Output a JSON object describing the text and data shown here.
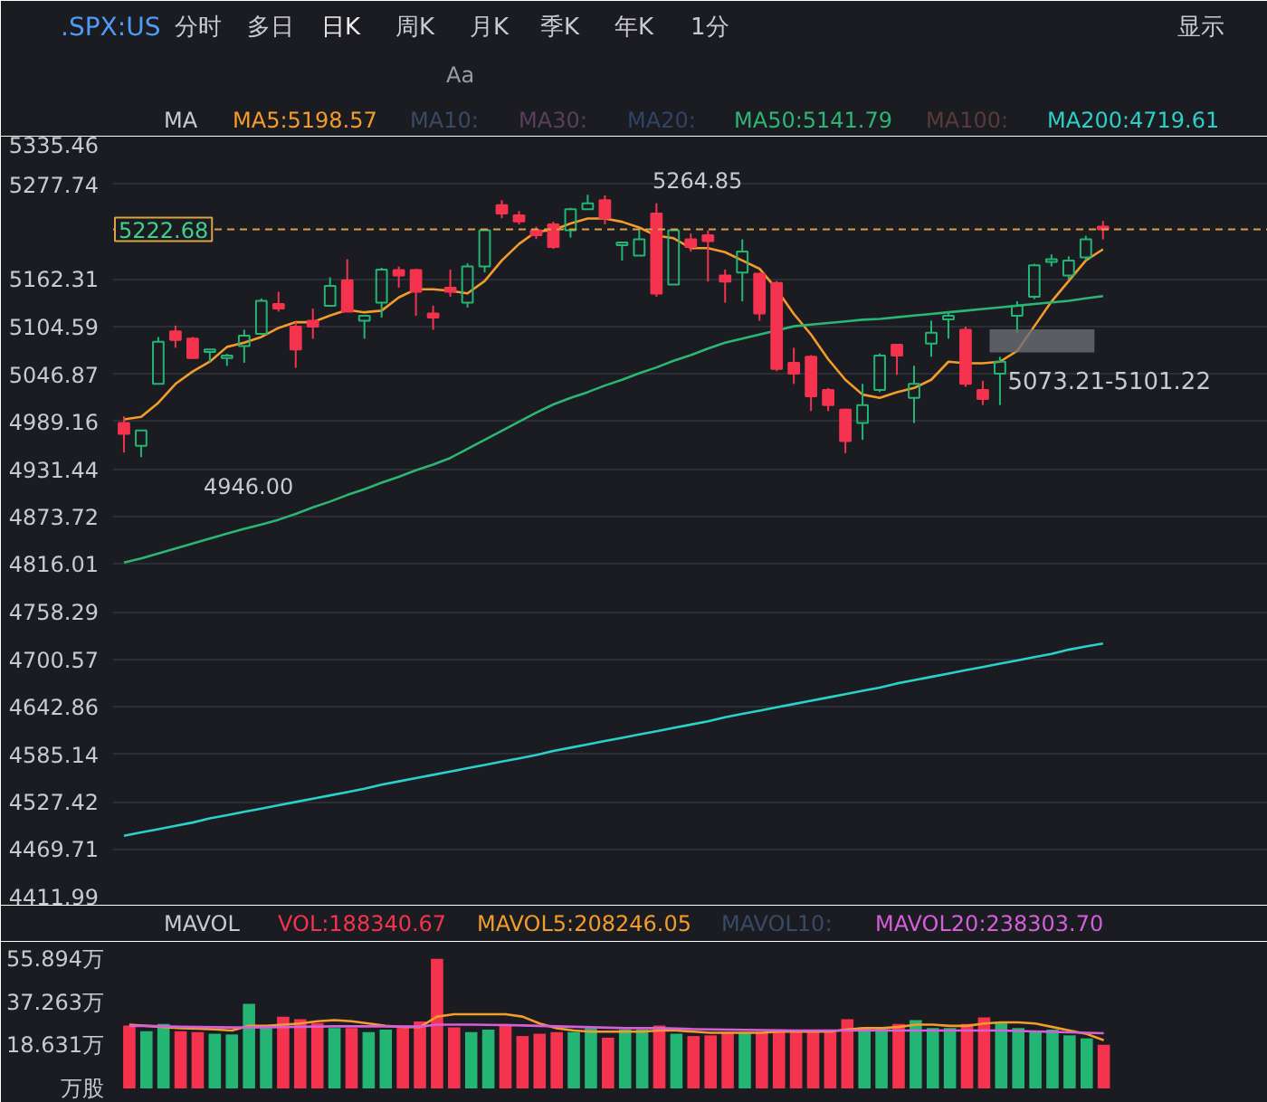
{
  "chart_data": [
    {
      "type": "candlestick",
      "title": ".SPX:US",
      "categories": [
        null,
        null,
        null,
        null,
        null,
        null,
        null,
        null,
        null,
        null,
        null,
        null,
        null,
        null,
        null,
        null,
        null,
        null,
        null,
        null,
        null,
        null,
        null,
        null,
        null,
        null,
        null,
        null,
        null,
        null,
        null,
        null,
        null,
        null,
        null,
        null,
        null,
        null,
        null,
        null,
        null,
        null,
        null,
        null,
        null,
        null,
        null,
        null,
        null,
        null,
        null,
        null,
        null,
        null,
        null,
        null,
        null,
        null
      ],
      "ohlc": [
        [
          4987.4,
          4995.5,
          4951.6,
          4974.2
        ],
        [
          4959.7,
          4979,
          4946,
          4978.5
        ],
        [
          5035,
          5092,
          5035,
          5086.1
        ],
        [
          5098.7,
          5105.9,
          5078.9,
          5088.3
        ],
        [
          5089.9,
          5092,
          5065.7,
          5066.4
        ],
        [
          5073.8,
          5076.7,
          5061.3,
          5076.7
        ],
        [
          5066.4,
          5071.6,
          5057,
          5069.4
        ],
        [
          5081,
          5100.8,
          5060.7,
          5093.6
        ],
        [
          5095.8,
          5138.8,
          5095.8,
          5136
        ],
        [
          5132.2,
          5146.9,
          5122.8,
          5126.5
        ],
        [
          5104.6,
          5110.3,
          5054.7,
          5076.7
        ],
        [
          5111.8,
          5126.5,
          5089.9,
          5104.6
        ],
        [
          5130,
          5164.5,
          5130,
          5154.2
        ],
        [
          5160.8,
          5186.4,
          5122.8,
          5122.8
        ],
        [
          5111.8,
          5117.7,
          5089.9,
          5117.7
        ],
        [
          5133.8,
          5176.1,
          5115.6,
          5173.9
        ],
        [
          5173.3,
          5177.7,
          5152,
          5166.7
        ],
        [
          5173.3,
          5175,
          5117.7,
          5147
        ],
        [
          5120.6,
          5130,
          5100.8,
          5115.6
        ],
        [
          5152,
          5173.9,
          5141,
          5147
        ],
        [
          5133.8,
          5181.4,
          5127.8,
          5177.7
        ],
        [
          5177.7,
          5221.6,
          5170.4,
          5221.6
        ],
        [
          5252.3,
          5258.2,
          5236.3,
          5242
        ],
        [
          5239.8,
          5245,
          5228.8,
          5232.5
        ],
        [
          5221.6,
          5226,
          5211,
          5215.6
        ],
        [
          5228.8,
          5232,
          5199,
          5201.2
        ],
        [
          5221.6,
          5249,
          5212.8,
          5247.3
        ],
        [
          5247.3,
          5264.85,
          5247.3,
          5254.5
        ],
        [
          5258.2,
          5264,
          5228.8,
          5236.3
        ],
        [
          5203.4,
          5206.9,
          5184.9,
          5206.9
        ],
        [
          5190.8,
          5223.1,
          5190.8,
          5210.6
        ],
        [
          5242,
          5254.5,
          5141,
          5144.7
        ],
        [
          5155.7,
          5221.6,
          5155.7,
          5221.6
        ],
        [
          5210.6,
          5217.8,
          5195.9,
          5201.2
        ],
        [
          5215.6,
          5221.6,
          5159.4,
          5208.4
        ],
        [
          5166.7,
          5173.9,
          5133.8,
          5159.4
        ],
        [
          5170.4,
          5210.6,
          5135.3,
          5195.9
        ],
        [
          5168.9,
          5170,
          5111.8,
          5120.6
        ],
        [
          5157.5,
          5160,
          5050.4,
          5053.2
        ],
        [
          5060.7,
          5078.9,
          5035,
          5047.5
        ],
        [
          5068,
          5070,
          5002,
          5020
        ],
        [
          5027.7,
          5030,
          5002,
          5009.3
        ],
        [
          5003.6,
          5005,
          4950.9,
          4965.4
        ],
        [
          4987.4,
          5035,
          4967,
          5009.3
        ],
        [
          5027.7,
          5072,
          5025,
          5069.4
        ],
        [
          5082.6,
          5082.6,
          5046,
          5069.4
        ],
        [
          5018.1,
          5057,
          4987.4,
          5035
        ],
        [
          5083.9,
          5111.8,
          5068,
          5097.1
        ],
        [
          5113.3,
          5122.8,
          5089.9,
          5117.7
        ],
        [
          5100.8,
          5104.6,
          5031.3,
          5035
        ],
        [
          5027.7,
          5038.7,
          5009.3,
          5016.7
        ],
        [
          5047.5,
          5068,
          5009.3,
          5062
        ],
        [
          5117.7,
          5135.3,
          5097.1,
          5130
        ],
        [
          5141,
          5181,
          5138,
          5179.2
        ],
        [
          5183.3,
          5192.4,
          5177.7,
          5186.4
        ],
        [
          5166.7,
          5190,
          5162,
          5184.9
        ],
        [
          5188.6,
          5215,
          5185,
          5210.6
        ],
        [
          5226,
          5233,
          5210.6,
          5222.68
        ]
      ],
      "colors": [
        "#f5334f",
        "#22b573",
        "#22b573",
        "#f5334f",
        "#f5334f",
        "#22b573",
        "#22b573",
        "#22b573",
        "#22b573",
        "#f5334f",
        "#f5334f",
        "#f5334f",
        "#22b573",
        "#f5334f",
        "#22b573",
        "#22b573",
        "#f5334f",
        "#f5334f",
        "#f5334f",
        "#f5334f",
        "#22b573",
        "#22b573",
        "#f5334f",
        "#f5334f",
        "#f5334f",
        "#f5334f",
        "#22b573",
        "#22b573",
        "#f5334f",
        "#22b573",
        "#22b573",
        "#f5334f",
        "#22b573",
        "#f5334f",
        "#f5334f",
        "#f5334f",
        "#22b573",
        "#f5334f",
        "#f5334f",
        "#f5334f",
        "#f5334f",
        "#f5334f",
        "#f5334f",
        "#22b573",
        "#22b573",
        "#f5334f",
        "#22b573",
        "#22b573",
        "#22b573",
        "#f5334f",
        "#f5334f",
        "#22b573",
        "#22b573",
        "#22b573",
        "#22b573",
        "#22b573",
        "#22b573",
        "#f5334f"
      ],
      "series": [
        {
          "name": "MA5:5198.57",
          "type": "line",
          "color": "#f39c2b",
          "values": [
            4992,
            4995,
            5012,
            5035,
            5050,
            5062,
            5080,
            5085,
            5092,
            5103,
            5110,
            5110,
            5118,
            5125,
            5122,
            5124,
            5140,
            5150,
            5150,
            5148,
            5145,
            5160,
            5185,
            5205,
            5220,
            5222,
            5230,
            5236,
            5236,
            5232,
            5225,
            5215,
            5212,
            5200,
            5200,
            5195,
            5185,
            5175,
            5150,
            5120,
            5095,
            5065,
            5040,
            5022,
            5018,
            5025,
            5030,
            5040,
            5062,
            5060,
            5060,
            5062,
            5075,
            5105,
            5135,
            5160,
            5185,
            5198.57
          ]
        },
        {
          "name": "MA50:5141.79",
          "type": "line",
          "color": "#2bb673",
          "values": [
            4818,
            4823,
            4829,
            4835,
            4841,
            4847,
            4853,
            4859,
            4864,
            4870,
            4877,
            4885,
            4892,
            4900,
            4907,
            4915,
            4922,
            4930,
            4937,
            4945,
            4956,
            4967,
            4978,
            4989,
            5000,
            5010,
            5018,
            5025,
            5033,
            5040,
            5048,
            5055,
            5063,
            5070,
            5078,
            5085,
            5090,
            5095,
            5100,
            5105,
            5107,
            5109,
            5111,
            5113,
            5114,
            5116,
            5118,
            5120,
            5122,
            5124,
            5126,
            5128,
            5130,
            5132,
            5134,
            5136,
            5139,
            5141.79
          ]
        },
        {
          "name": "MA200:4719.61",
          "type": "line",
          "color": "#2ad1c9",
          "values": [
            4486,
            4490,
            4494,
            4498,
            4502,
            4507,
            4511,
            4515,
            4519,
            4523,
            4527,
            4531,
            4535,
            4539,
            4543,
            4548,
            4552,
            4556,
            4560,
            4564,
            4568,
            4572,
            4576,
            4580,
            4584,
            4589,
            4593,
            4597,
            4601,
            4605,
            4609,
            4613,
            4617,
            4621,
            4625,
            4630,
            4634,
            4638,
            4642,
            4646,
            4650,
            4654,
            4658,
            4662,
            4666,
            4671,
            4675,
            4679,
            4683,
            4687,
            4691,
            4695,
            4699,
            4703,
            4707,
            4712,
            4716,
            4719.61
          ]
        }
      ],
      "ylim": [
        4411.99,
        5335.46
      ],
      "yticks": [
        4411.99,
        4469.71,
        4527.42,
        4585.14,
        4642.86,
        4700.57,
        4758.29,
        4816.01,
        4873.72,
        4931.44,
        4989.16,
        5046.87,
        5104.59,
        5162.31,
        5277.74,
        5335.46
      ],
      "grid": "y",
      "tick_labels": "y",
      "ref_lines": [
        {
          "axis": "y",
          "value": 5222.68,
          "label": "5222.68",
          "color": "#d9a441",
          "line_style": "dashed"
        }
      ],
      "bands": [
        {
          "axis": "y",
          "from": 5073.21,
          "to": 5101.22,
          "label": "5073.21-5101.22",
          "color": "#6b6e75"
        }
      ],
      "annotations": [
        "分时",
        "多日",
        "日K",
        "周K",
        "月K",
        "季K",
        "年K",
        "1分",
        "显示",
        "Aa",
        "MA",
        "MA10:",
        "MA30:",
        "MA20:",
        "MA100:",
        "5264.85",
        "4946.00"
      ]
    },
    {
      "type": "bar",
      "ylabel": "万股",
      "categories": [
        null,
        null,
        null,
        null,
        null,
        null,
        null,
        null,
        null,
        null,
        null,
        null,
        null,
        null,
        null,
        null,
        null,
        null,
        null,
        null,
        null,
        null,
        null,
        null,
        null,
        null,
        null,
        null,
        null,
        null,
        null,
        null,
        null,
        null,
        null,
        null,
        null,
        null,
        null,
        null,
        null,
        null,
        null,
        null,
        null,
        null,
        null,
        null,
        null,
        null,
        null,
        null,
        null,
        null,
        null,
        null,
        null,
        null
      ],
      "series": [
        {
          "name": "VOL:188340.67",
          "type": "bar",
          "colors": [
            "#f5334f",
            "#22b573",
            "#22b573",
            "#f5334f",
            "#f5334f",
            "#22b573",
            "#22b573",
            "#22b573",
            "#22b573",
            "#f5334f",
            "#f5334f",
            "#f5334f",
            "#22b573",
            "#f5334f",
            "#22b573",
            "#22b573",
            "#f5334f",
            "#f5334f",
            "#f5334f",
            "#f5334f",
            "#22b573",
            "#22b573",
            "#f5334f",
            "#f5334f",
            "#f5334f",
            "#f5334f",
            "#22b573",
            "#22b573",
            "#f5334f",
            "#22b573",
            "#22b573",
            "#f5334f",
            "#22b573",
            "#f5334f",
            "#f5334f",
            "#f5334f",
            "#22b573",
            "#f5334f",
            "#f5334f",
            "#f5334f",
            "#f5334f",
            "#f5334f",
            "#f5334f",
            "#22b573",
            "#22b573",
            "#f5334f",
            "#22b573",
            "#22b573",
            "#22b573",
            "#f5334f",
            "#f5334f",
            "#22b573",
            "#22b573",
            "#22b573",
            "#22b573",
            "#22b573",
            "#22b573",
            "#f5334f"
          ],
          "values": [
            27.1,
            24.7,
            27.8,
            24.7,
            24.3,
            23.6,
            23.3,
            36.5,
            26.1,
            30.9,
            29.9,
            28.2,
            26.1,
            26.1,
            24.3,
            25.4,
            26.1,
            28.9,
            55.894,
            26.4,
            24.3,
            25.4,
            27.8,
            22.6,
            23.6,
            24.3,
            24.3,
            26.1,
            21.9,
            25.4,
            25.4,
            27.1,
            23.6,
            22.6,
            22.9,
            24.3,
            24.3,
            24.3,
            25.4,
            25.4,
            25.4,
            24.3,
            29.9,
            26.4,
            26.4,
            27.8,
            29.5,
            26.1,
            26.1,
            27.8,
            30.6,
            28.9,
            26.1,
            24.3,
            25.4,
            22.9,
            21.6,
            18.834
          ]
        },
        {
          "name": "MAVOL5:208246.05",
          "type": "line",
          "color": "#f39c2b",
          "values": [
            27.5,
            27,
            26.5,
            26,
            25.8,
            25.5,
            25,
            27,
            27,
            27.5,
            28,
            29,
            29.5,
            29,
            28,
            27,
            26.5,
            26.5,
            31,
            32,
            32,
            32,
            32,
            31,
            28,
            26,
            25,
            24.5,
            24.5,
            24.5,
            24.5,
            25,
            25,
            24.5,
            24,
            24,
            24,
            24,
            24.5,
            24.5,
            24.5,
            24.5,
            25.5,
            26,
            26,
            26.5,
            27.5,
            27.5,
            27,
            27,
            28,
            28.5,
            28.5,
            28,
            26.5,
            25,
            23.5,
            20.8246
          ]
        },
        {
          "name": "MAVOL20:238303.70",
          "type": "line",
          "color": "#d55fd8",
          "values": [
            27,
            27,
            26.8,
            26.6,
            26.5,
            26.4,
            26.3,
            26.3,
            26.4,
            26.5,
            26.6,
            26.7,
            26.8,
            26.8,
            26.8,
            26.8,
            26.7,
            26.7,
            27.5,
            27.5,
            27.5,
            27.4,
            27.3,
            27.2,
            27,
            26.8,
            26.6,
            26.4,
            26.2,
            26,
            26,
            26,
            25.8,
            25.6,
            25.5,
            25.4,
            25.3,
            25.2,
            25.1,
            25,
            25,
            25,
            25,
            25,
            25,
            25,
            25,
            25,
            25,
            25,
            25,
            25,
            24.8,
            24.6,
            24.4,
            24.2,
            24,
            23.8303
          ]
        }
      ],
      "ylim": [
        0,
        57
      ],
      "yticks": [
        {
          "value": 18.631,
          "label": "18.631万"
        },
        {
          "value": 37.263,
          "label": "37.263万"
        },
        {
          "value": 55.894,
          "label": "55.894万"
        }
      ],
      "tick_labels": "y",
      "annotations": [
        "MAVOL",
        "MAVOL10:"
      ]
    }
  ]
}
